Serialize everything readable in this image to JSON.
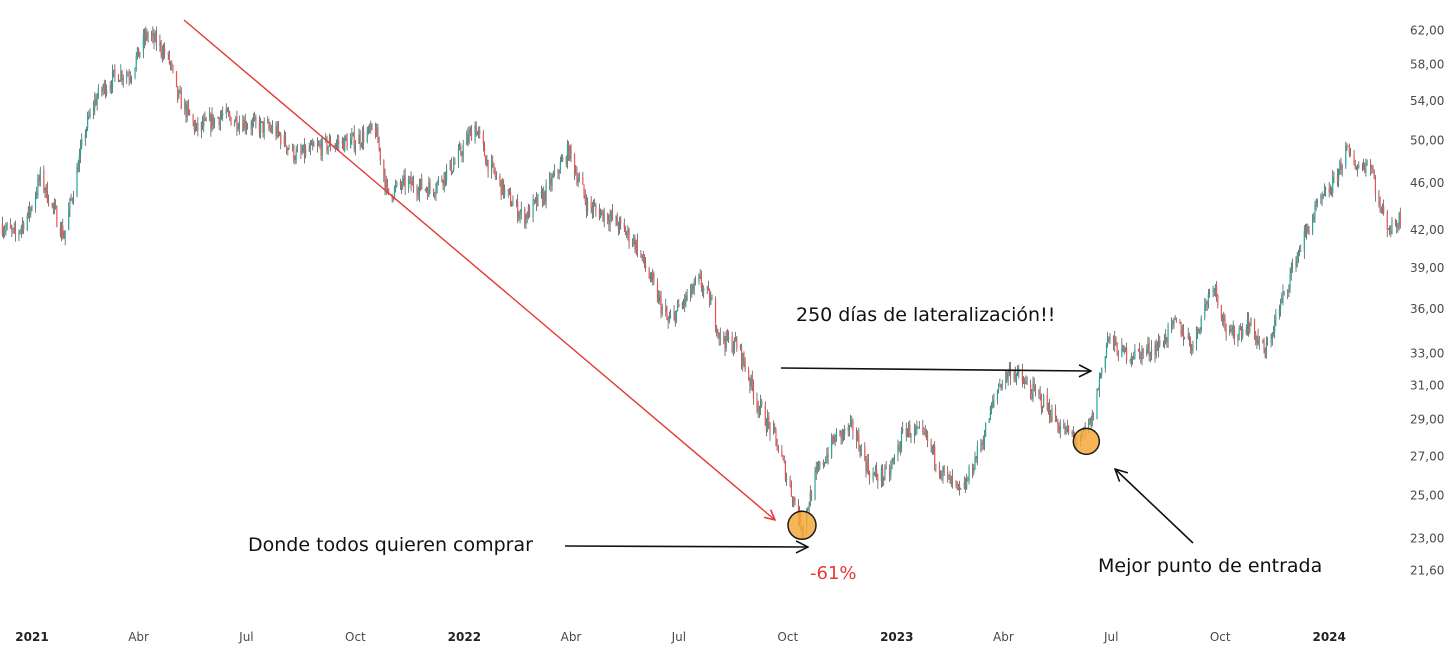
{
  "chart_data": {
    "type": "candlestick",
    "title": "",
    "xlabel": "",
    "ylabel": "",
    "y_scale": "log",
    "ylim": [
      20.8,
      63.5
    ],
    "y_ticks": [
      "62,00",
      "58,00",
      "54,00",
      "50,00",
      "46,00",
      "42,00",
      "39,00",
      "36,00",
      "33,00",
      "31,00",
      "29,00",
      "27,00",
      "25,00",
      "23,00",
      "21,60"
    ],
    "x_range": [
      "2020-12-05",
      "2024-03-05"
    ],
    "x_ticks": [
      {
        "date": "2021-01-01",
        "label": "2021",
        "year": true
      },
      {
        "date": "2021-04-01",
        "label": "Abr",
        "year": false
      },
      {
        "date": "2021-07-01",
        "label": "Jul",
        "year": false
      },
      {
        "date": "2021-10-01",
        "label": "Oct",
        "year": false
      },
      {
        "date": "2022-01-01",
        "label": "2022",
        "year": true
      },
      {
        "date": "2022-04-01",
        "label": "Abr",
        "year": false
      },
      {
        "date": "2022-07-01",
        "label": "Jul",
        "year": false
      },
      {
        "date": "2022-10-01",
        "label": "Oct",
        "year": false
      },
      {
        "date": "2023-01-01",
        "label": "2023",
        "year": true
      },
      {
        "date": "2023-04-01",
        "label": "Abr",
        "year": false
      },
      {
        "date": "2023-07-01",
        "label": "Jul",
        "year": false
      },
      {
        "date": "2023-10-01",
        "label": "Oct",
        "year": false
      },
      {
        "date": "2024-01-01",
        "label": "2024",
        "year": true
      }
    ],
    "price_path": [
      [
        "2020-12-05",
        42.5
      ],
      [
        "2020-12-18",
        41.5
      ],
      [
        "2020-12-30",
        43.5
      ],
      [
        "2021-01-08",
        46.5
      ],
      [
        "2021-01-18",
        44.0
      ],
      [
        "2021-01-28",
        41.5
      ],
      [
        "2021-02-05",
        45.5
      ],
      [
        "2021-02-15",
        51.0
      ],
      [
        "2021-02-23",
        54.0
      ],
      [
        "2021-03-03",
        55.5
      ],
      [
        "2021-03-15",
        57.0
      ],
      [
        "2021-03-25",
        57.0
      ],
      [
        "2021-04-08",
        61.5
      ],
      [
        "2021-04-20",
        60.0
      ],
      [
        "2021-04-28",
        58.0
      ],
      [
        "2021-05-02",
        55.0
      ],
      [
        "2021-05-20",
        51.0
      ],
      [
        "2021-06-10",
        52.5
      ],
      [
        "2021-07-08",
        51.5
      ],
      [
        "2021-07-25",
        51.0
      ],
      [
        "2021-08-12",
        48.5
      ],
      [
        "2021-09-05",
        49.5
      ],
      [
        "2021-09-30",
        50.0
      ],
      [
        "2021-10-18",
        51.0
      ],
      [
        "2021-10-28",
        45.0
      ],
      [
        "2021-11-12",
        46.0
      ],
      [
        "2021-12-05",
        45.5
      ],
      [
        "2021-12-25",
        48.0
      ],
      [
        "2022-01-10",
        51.5
      ],
      [
        "2022-01-20",
        48.0
      ],
      [
        "2022-02-05",
        45.0
      ],
      [
        "2022-02-20",
        43.0
      ],
      [
        "2022-03-10",
        45.0
      ],
      [
        "2022-03-30",
        49.0
      ],
      [
        "2022-04-15",
        44.0
      ],
      [
        "2022-05-05",
        43.0
      ],
      [
        "2022-05-25",
        41.0
      ],
      [
        "2022-06-10",
        37.5
      ],
      [
        "2022-06-22",
        35.0
      ],
      [
        "2022-07-10",
        37.0
      ],
      [
        "2022-07-18",
        38.0
      ],
      [
        "2022-07-28",
        36.5
      ],
      [
        "2022-08-05",
        34.0
      ],
      [
        "2022-08-20",
        33.5
      ],
      [
        "2022-09-05",
        30.0
      ],
      [
        "2022-09-20",
        28.0
      ],
      [
        "2022-10-05",
        25.0
      ],
      [
        "2022-10-13",
        23.5
      ],
      [
        "2022-10-25",
        26.0
      ],
      [
        "2022-11-10",
        28.0
      ],
      [
        "2022-11-25",
        28.5
      ],
      [
        "2022-12-10",
        26.0
      ],
      [
        "2022-12-25",
        26.0
      ],
      [
        "2023-01-08",
        28.5
      ],
      [
        "2023-01-25",
        28.0
      ],
      [
        "2023-02-10",
        26.0
      ],
      [
        "2023-02-25",
        25.0
      ],
      [
        "2023-03-15",
        28.0
      ],
      [
        "2023-03-28",
        31.0
      ],
      [
        "2023-04-08",
        32.0
      ],
      [
        "2023-04-20",
        31.0
      ],
      [
        "2023-05-05",
        30.0
      ],
      [
        "2023-05-20",
        28.5
      ],
      [
        "2023-06-05",
        27.8
      ],
      [
        "2023-06-15",
        29.0
      ],
      [
        "2023-06-28",
        34.0
      ],
      [
        "2023-07-10",
        33.0
      ],
      [
        "2023-07-25",
        33.0
      ],
      [
        "2023-08-10",
        33.5
      ],
      [
        "2023-08-25",
        35.0
      ],
      [
        "2023-09-08",
        33.5
      ],
      [
        "2023-09-25",
        38.0
      ],
      [
        "2023-10-08",
        34.0
      ],
      [
        "2023-10-25",
        35.0
      ],
      [
        "2023-11-08",
        33.0
      ],
      [
        "2023-11-20",
        36.0
      ],
      [
        "2023-12-05",
        40.0
      ],
      [
        "2023-12-20",
        43.5
      ],
      [
        "2024-01-05",
        46.0
      ],
      [
        "2024-01-15",
        49.0
      ],
      [
        "2024-01-25",
        47.5
      ],
      [
        "2024-02-05",
        48.0
      ],
      [
        "2024-02-12",
        44.0
      ],
      [
        "2024-02-22",
        42.0
      ],
      [
        "2024-03-01",
        43.0
      ]
    ],
    "annotations": {
      "sideways": "250 días de lateralización!!",
      "buy_zone": "Donde todos quieren comprar",
      "drop": "-61%",
      "entry": "Mejor punto de entrada"
    },
    "highlights": [
      {
        "date": "2022-10-13",
        "price": 23.6
      },
      {
        "date": "2023-06-10",
        "price": 27.8
      }
    ],
    "colors": {
      "up": "#26a69a",
      "down": "#ef5350",
      "wick": "#444444",
      "trend_line": "#e53935",
      "arrow": "#111111",
      "marker_fill": "#f5a93b",
      "marker_stroke": "#1a1a1a"
    }
  }
}
